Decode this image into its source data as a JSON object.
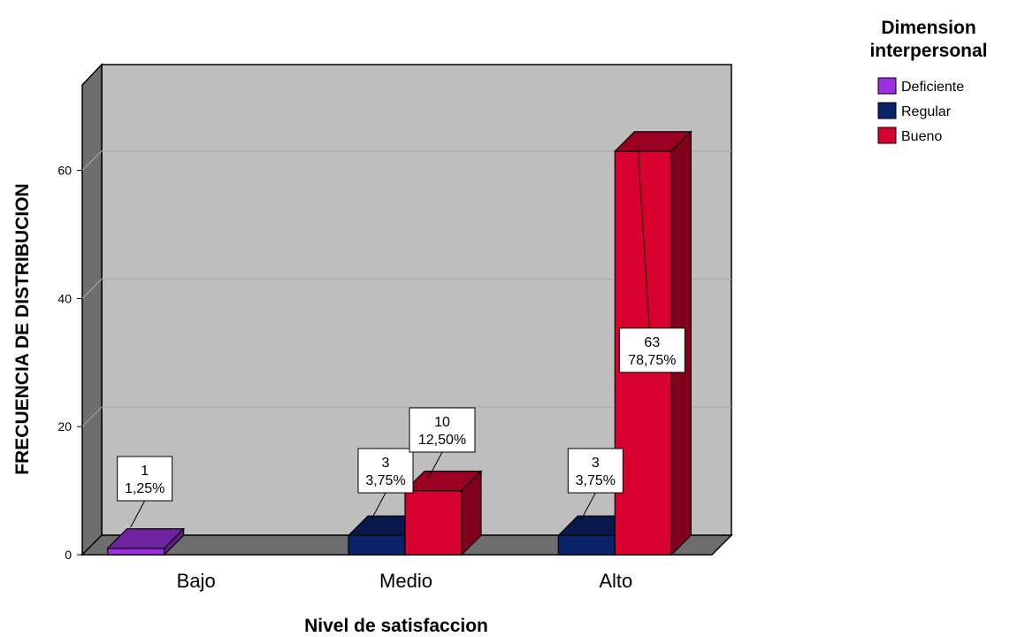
{
  "chart_data": {
    "type": "bar",
    "style": "3d-clustered",
    "categories": [
      "Bajo",
      "Medio",
      "Alto"
    ],
    "series": [
      {
        "name": "Deficiente",
        "color": "#9B30E0",
        "values": [
          1,
          0,
          0
        ],
        "percents": [
          "1,25%",
          "",
          ""
        ]
      },
      {
        "name": "Regular",
        "color": "#0A2268",
        "values": [
          0,
          3,
          3
        ],
        "percents": [
          "",
          "3,75%",
          "3,75%"
        ]
      },
      {
        "name": "Bueno",
        "color": "#D7002F",
        "values": [
          0,
          10,
          63
        ],
        "percents": [
          "",
          "12,50%",
          "78,75%"
        ]
      }
    ],
    "xlabel": "Nivel de satisfaccion",
    "ylabel": "FRECUENCIA DE DISTRIBUCION",
    "legend_title": [
      "Dimension",
      "interpersonal"
    ],
    "legend_position": "top-right",
    "yticks": [
      0,
      20,
      40,
      60
    ],
    "ylim": [
      0,
      76
    ],
    "grid": true,
    "plot_background": "#BEBEBE"
  }
}
